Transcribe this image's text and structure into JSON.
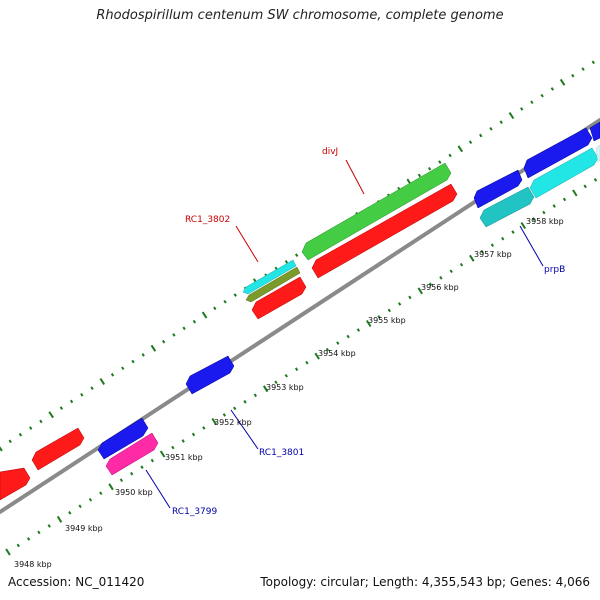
{
  "title": "Rhodospirillum centenum SW chromosome, complete genome",
  "footer": {
    "accession": "Accession: NC_011420",
    "stats": "Topology: circular; Length: 4,355,543 bp; Genes: 4,066"
  },
  "colors": {
    "background": "#ffffff",
    "backbone": "#8a8a8a",
    "tick": "#1d7a1d",
    "red": "#ff1a1a",
    "green": "#44cc44",
    "blue": "#1a1aee",
    "cyan": "#22e5e5",
    "teal": "#22c3c3",
    "olive": "#7a9a2a",
    "magenta": "#ff2aa6",
    "label_red": "#cc0000",
    "label_blue": "#0000aa"
  },
  "scale_labels": [
    "3948 kbp",
    "3949 kbp",
    "3950 kbp",
    "3951 kbp",
    "3952 kbp",
    "3953 kbp",
    "3954 kbp",
    "3955 kbp",
    "3956 kbp",
    "3957 kbp",
    "3958 kbp"
  ],
  "gene_labels": {
    "divj": "divJ",
    "rc1_3802": "RC1_3802",
    "rc1_3801": "RC1_3801",
    "rc1_3799": "RC1_3799",
    "prpb": "prpB"
  }
}
